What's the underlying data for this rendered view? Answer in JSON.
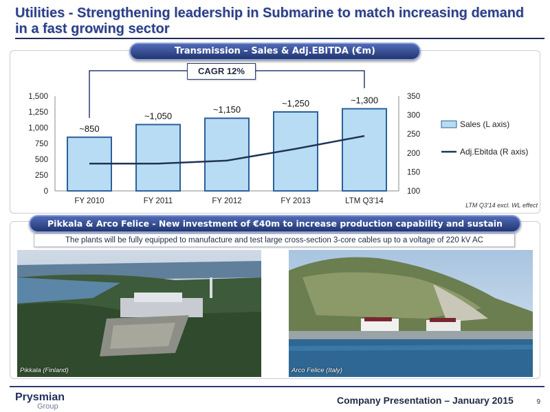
{
  "title": "Utilities - Strengthening leadership in Submarine to match increasing demand in a fast growing sector",
  "chart_section_title": "Transmission – Sales & Adj.EBITDA (€m)",
  "cagr_label": "CAGR 12%",
  "ltm_note": "LTM Q3'14 excl. WL effect",
  "chart_data": {
    "type": "bar",
    "title": "",
    "categories": [
      "FY 2010",
      "FY 2011",
      "FY 2012",
      "FY 2013",
      "LTM Q3'14"
    ],
    "series": [
      {
        "name": "Sales (L axis)",
        "type": "bar",
        "axis": "left",
        "values": [
          850,
          1050,
          1150,
          1250,
          1300
        ]
      },
      {
        "name": "Adj.Ebitda (R axis)",
        "type": "line",
        "axis": "right",
        "values": [
          172,
          172,
          180,
          211,
          245
        ]
      }
    ],
    "data_labels": [
      "~850",
      "~1,050",
      "~1,150",
      "~1,250",
      "~1,300"
    ],
    "ylim_left": [
      0,
      1500
    ],
    "yticks_left": [
      "0",
      "250",
      "500",
      "750",
      "1,000",
      "1,250",
      "1,500"
    ],
    "ylim_right": [
      100,
      350
    ],
    "yticks_right": [
      "100",
      "150",
      "200",
      "250",
      "300",
      "350"
    ],
    "legend_position": "right",
    "colors": {
      "bar": "#b7dcf3",
      "bar_edge": "#2b5f9a",
      "line": "#1f3355"
    }
  },
  "plants_section_title": "Pikkala & Arco Felice - New investment of €40m to increase production capability and sustain growth",
  "plants_note": "The plants will be fully equipped to manufacture and test large cross-section 3-core cables up to a voltage of 220 kV AC",
  "photo_captions": [
    "Pikkala (Finland)",
    "Arco Felice (Italy)"
  ],
  "footer": {
    "logo_main": "Prysmian",
    "logo_sub": "Group",
    "text": "Company Presentation – January 2015",
    "page_number": "9"
  }
}
